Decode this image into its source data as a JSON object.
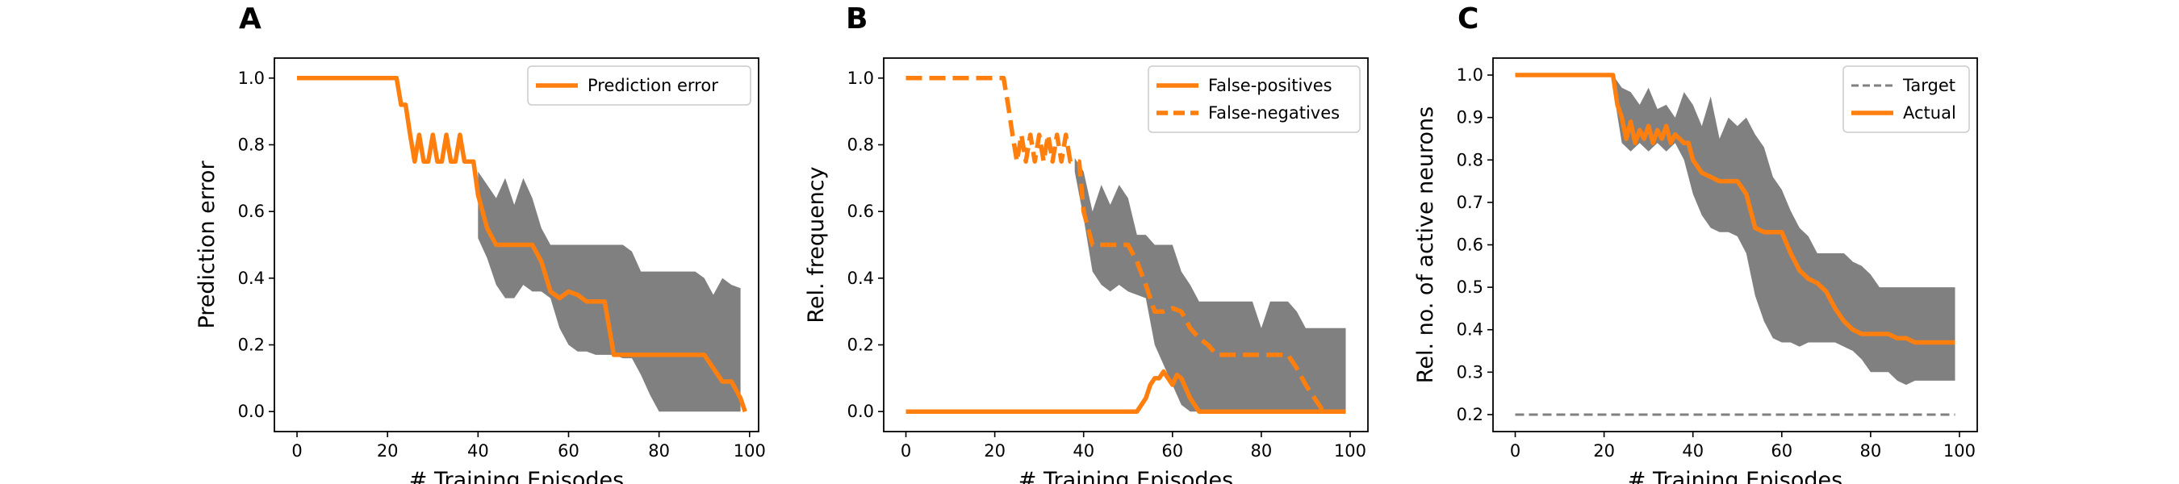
{
  "colors": {
    "line": "#ff7f0e",
    "band": "#808080",
    "target": "#808080",
    "axis": "#000000"
  },
  "chart_data": [
    {
      "type": "line",
      "panel_label": "A",
      "xlabel": "# Training Episodes",
      "ylabel": "Prediction error",
      "xlim": [
        -5,
        102
      ],
      "ylim": [
        -0.06,
        1.06
      ],
      "xticks": [
        0,
        20,
        40,
        60,
        80,
        100
      ],
      "yticks": [
        0.0,
        0.2,
        0.4,
        0.6,
        0.8,
        1.0
      ],
      "ytick_decimals": 1,
      "legend": {
        "position": "top-right"
      },
      "bands": [
        {
          "x": [
            40,
            42,
            44,
            46,
            48,
            50,
            52,
            54,
            56,
            58,
            60,
            62,
            64,
            66,
            68,
            70,
            72,
            74,
            76,
            78,
            80,
            82,
            84,
            86,
            88,
            90,
            92,
            94,
            96,
            98
          ],
          "upper": [
            0.72,
            0.68,
            0.64,
            0.7,
            0.62,
            0.7,
            0.64,
            0.55,
            0.5,
            0.5,
            0.5,
            0.5,
            0.5,
            0.5,
            0.5,
            0.5,
            0.5,
            0.48,
            0.42,
            0.42,
            0.42,
            0.42,
            0.42,
            0.42,
            0.42,
            0.4,
            0.35,
            0.4,
            0.38,
            0.37
          ],
          "lower": [
            0.52,
            0.46,
            0.38,
            0.34,
            0.34,
            0.38,
            0.36,
            0.36,
            0.34,
            0.25,
            0.2,
            0.18,
            0.18,
            0.17,
            0.17,
            0.17,
            0.16,
            0.16,
            0.11,
            0.05,
            0.0,
            0.0,
            0.0,
            0.0,
            0.0,
            0.0,
            0.0,
            0.0,
            0.0,
            0.0
          ]
        }
      ],
      "series": [
        {
          "name": "Prediction error",
          "style": "solid",
          "x": [
            0,
            22,
            23,
            24,
            25,
            26,
            27,
            28,
            29,
            30,
            31,
            32,
            33,
            34,
            35,
            36,
            37,
            38,
            39,
            40,
            42,
            44,
            46,
            48,
            50,
            52,
            54,
            56,
            58,
            60,
            62,
            64,
            66,
            68,
            70,
            72,
            74,
            76,
            78,
            80,
            82,
            84,
            86,
            88,
            90,
            92,
            94,
            96,
            98,
            99
          ],
          "y": [
            1.0,
            1.0,
            0.92,
            0.92,
            0.83,
            0.75,
            0.83,
            0.75,
            0.75,
            0.83,
            0.75,
            0.75,
            0.83,
            0.75,
            0.75,
            0.83,
            0.75,
            0.75,
            0.75,
            0.65,
            0.55,
            0.5,
            0.5,
            0.5,
            0.5,
            0.5,
            0.45,
            0.36,
            0.34,
            0.36,
            0.35,
            0.33,
            0.33,
            0.33,
            0.17,
            0.17,
            0.17,
            0.17,
            0.17,
            0.17,
            0.17,
            0.17,
            0.17,
            0.17,
            0.17,
            0.13,
            0.09,
            0.09,
            0.04,
            0.0
          ]
        }
      ]
    },
    {
      "type": "line",
      "panel_label": "B",
      "xlabel": "# Training Episodes",
      "ylabel": "Rel. frequency",
      "xlim": [
        -5,
        104
      ],
      "ylim": [
        -0.06,
        1.06
      ],
      "xticks": [
        0,
        20,
        40,
        60,
        80,
        100
      ],
      "yticks": [
        0.0,
        0.2,
        0.4,
        0.6,
        0.8,
        1.0
      ],
      "ytick_decimals": 1,
      "legend": {
        "position": "top-right"
      },
      "bands": [
        {
          "x": [
            38,
            40,
            42,
            44,
            46,
            48,
            50,
            52,
            54,
            56,
            58,
            60,
            62,
            64,
            66,
            68,
            70,
            72,
            74,
            76,
            78,
            80,
            82,
            84,
            86,
            88,
            90,
            92,
            94,
            96,
            99
          ],
          "upper": [
            0.76,
            0.72,
            0.6,
            0.68,
            0.62,
            0.68,
            0.64,
            0.53,
            0.53,
            0.5,
            0.5,
            0.5,
            0.42,
            0.38,
            0.33,
            0.33,
            0.33,
            0.33,
            0.33,
            0.33,
            0.33,
            0.25,
            0.33,
            0.33,
            0.33,
            0.3,
            0.25,
            0.25,
            0.25,
            0.25,
            0.25
          ],
          "lower": [
            0.72,
            0.58,
            0.42,
            0.38,
            0.36,
            0.38,
            0.36,
            0.35,
            0.34,
            0.2,
            0.14,
            0.08,
            0.02,
            0.0,
            0.0,
            0.0,
            0.0,
            0.0,
            0.0,
            0.0,
            0.0,
            0.0,
            0.0,
            0.0,
            0.0,
            0.0,
            0.0,
            0.0,
            0.0,
            0.0,
            0.0
          ]
        }
      ],
      "series": [
        {
          "name": "False-positives",
          "style": "solid",
          "x": [
            0,
            52,
            54,
            55,
            56,
            57,
            58,
            59,
            60,
            61,
            62,
            64,
            66,
            68,
            70,
            80,
            90,
            99
          ],
          "y": [
            0.0,
            0.0,
            0.04,
            0.08,
            0.1,
            0.1,
            0.12,
            0.1,
            0.08,
            0.11,
            0.1,
            0.04,
            0.0,
            0.0,
            0.0,
            0.0,
            0.0,
            0.0
          ]
        },
        {
          "name": "False-negatives",
          "style": "dashed",
          "x": [
            0,
            22,
            23,
            24,
            25,
            26,
            27,
            28,
            29,
            30,
            31,
            32,
            33,
            34,
            35,
            36,
            37,
            38,
            39,
            40,
            41,
            42,
            44,
            46,
            48,
            50,
            52,
            54,
            56,
            58,
            60,
            62,
            64,
            66,
            68,
            70,
            72,
            74,
            76,
            78,
            80,
            82,
            84,
            86,
            88,
            90,
            92,
            94,
            96,
            99
          ],
          "y": [
            1.0,
            1.0,
            0.92,
            0.83,
            0.75,
            0.83,
            0.75,
            0.83,
            0.75,
            0.83,
            0.75,
            0.83,
            0.75,
            0.83,
            0.75,
            0.83,
            0.75,
            0.75,
            0.75,
            0.6,
            0.55,
            0.5,
            0.5,
            0.5,
            0.5,
            0.5,
            0.45,
            0.38,
            0.3,
            0.3,
            0.31,
            0.3,
            0.25,
            0.22,
            0.2,
            0.17,
            0.17,
            0.17,
            0.17,
            0.17,
            0.17,
            0.17,
            0.17,
            0.17,
            0.13,
            0.08,
            0.04,
            0.0,
            0.0,
            0.0
          ]
        }
      ]
    },
    {
      "type": "line",
      "panel_label": "C",
      "xlabel": "# Training Episodes",
      "ylabel": "Rel. no. of active neurons",
      "xlim": [
        -5,
        104
      ],
      "ylim": [
        0.16,
        1.04
      ],
      "xticks": [
        0,
        20,
        40,
        60,
        80,
        100
      ],
      "yticks": [
        0.2,
        0.3,
        0.4,
        0.5,
        0.6,
        0.7,
        0.8,
        0.9,
        1.0
      ],
      "ytick_decimals": 1,
      "legend": {
        "position": "top-right"
      },
      "bands": [
        {
          "x": [
            22,
            24,
            26,
            28,
            30,
            32,
            34,
            36,
            38,
            40,
            42,
            44,
            46,
            48,
            50,
            52,
            54,
            56,
            58,
            60,
            62,
            64,
            66,
            68,
            70,
            72,
            74,
            76,
            78,
            80,
            82,
            84,
            86,
            88,
            90,
            92,
            94,
            96,
            99
          ],
          "upper": [
            1.0,
            0.97,
            0.96,
            0.93,
            0.97,
            0.92,
            0.93,
            0.9,
            0.96,
            0.93,
            0.88,
            0.95,
            0.85,
            0.9,
            0.88,
            0.9,
            0.86,
            0.83,
            0.76,
            0.73,
            0.68,
            0.64,
            0.62,
            0.58,
            0.58,
            0.58,
            0.58,
            0.56,
            0.55,
            0.53,
            0.5,
            0.5,
            0.5,
            0.5,
            0.5,
            0.5,
            0.5,
            0.5,
            0.5
          ],
          "lower": [
            0.97,
            0.84,
            0.82,
            0.84,
            0.82,
            0.84,
            0.82,
            0.84,
            0.8,
            0.72,
            0.67,
            0.64,
            0.63,
            0.63,
            0.62,
            0.58,
            0.48,
            0.42,
            0.38,
            0.37,
            0.37,
            0.36,
            0.37,
            0.37,
            0.37,
            0.37,
            0.36,
            0.35,
            0.33,
            0.3,
            0.3,
            0.3,
            0.28,
            0.27,
            0.28,
            0.28,
            0.28,
            0.28,
            0.28
          ]
        }
      ],
      "series": [
        {
          "name": "Target",
          "style": "dashed-thin",
          "x": [
            0,
            99
          ],
          "y": [
            0.2,
            0.2
          ]
        },
        {
          "name": "Actual",
          "style": "solid",
          "x": [
            0,
            22,
            23,
            24,
            25,
            26,
            27,
            28,
            29,
            30,
            31,
            32,
            33,
            34,
            35,
            36,
            37,
            38,
            39,
            40,
            42,
            44,
            46,
            48,
            50,
            52,
            54,
            56,
            58,
            60,
            62,
            64,
            66,
            68,
            70,
            72,
            74,
            76,
            78,
            80,
            82,
            84,
            86,
            88,
            90,
            92,
            94,
            96,
            99
          ],
          "y": [
            1.0,
            1.0,
            0.93,
            0.9,
            0.85,
            0.89,
            0.84,
            0.87,
            0.85,
            0.88,
            0.84,
            0.87,
            0.85,
            0.88,
            0.84,
            0.86,
            0.85,
            0.84,
            0.84,
            0.8,
            0.77,
            0.76,
            0.75,
            0.75,
            0.75,
            0.72,
            0.64,
            0.63,
            0.63,
            0.63,
            0.58,
            0.54,
            0.52,
            0.51,
            0.49,
            0.45,
            0.42,
            0.4,
            0.39,
            0.39,
            0.39,
            0.39,
            0.38,
            0.38,
            0.37,
            0.37,
            0.37,
            0.37,
            0.37
          ]
        }
      ]
    }
  ]
}
